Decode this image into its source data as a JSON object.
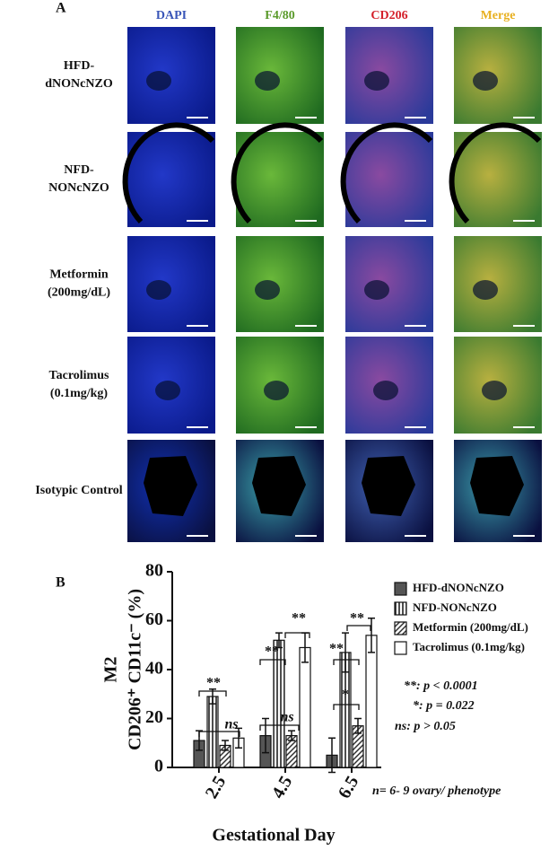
{
  "panel_a": {
    "label": "A",
    "columns": [
      {
        "name": "DAPI",
        "color": "#3a56b8"
      },
      {
        "name": "F4/80",
        "color": "#5a9a2a"
      },
      {
        "name": "CD206",
        "color": "#d4202a"
      },
      {
        "name": "Merge",
        "color": "#e8b020"
      }
    ],
    "rows": [
      [
        "HFD-",
        "dNONcNZO"
      ],
      [
        "NFD-",
        "NONcNZO"
      ],
      [
        "Metformin",
        "(200mg/dL)"
      ],
      [
        "Tacrolimus",
        "(0.1mg/kg)"
      ],
      [
        "Isotypic Control"
      ]
    ]
  },
  "chart_data": {
    "type": "bar",
    "label": "B",
    "y_label": [
      "M2",
      "CD206⁺ CD11c⁻ (%)"
    ],
    "x_label": "Gestational Day",
    "categories": [
      "2.5",
      "4.5",
      "6.5"
    ],
    "series": [
      {
        "name": "HFD-dNONcNZO",
        "color": "#555555",
        "hatch": "none",
        "values": [
          11,
          13,
          5
        ],
        "errors": [
          4,
          7,
          7
        ]
      },
      {
        "name": "NFD-NONcNZO",
        "color": "#ffffff",
        "hatch": "vertical",
        "values": [
          29,
          52,
          47
        ],
        "errors": [
          3,
          3,
          8
        ]
      },
      {
        "name": "Metformin (200mg/dL)",
        "color": "#ffffff",
        "hatch": "diagonal",
        "values": [
          9,
          13,
          17
        ],
        "errors": [
          2,
          2,
          3
        ]
      },
      {
        "name": "Tacrolimus (0.1mg/kg)",
        "color": "#ffffff",
        "hatch": "none",
        "values": [
          12,
          49,
          54
        ],
        "errors": [
          4,
          6,
          7
        ]
      }
    ],
    "ylim": [
      0,
      80
    ],
    "yticks": [
      0,
      20,
      40,
      60,
      80
    ],
    "legend": "right",
    "annotations": [
      "**",
      "ns",
      "**",
      "**",
      "ns",
      "**",
      "**",
      "*"
    ],
    "notes": [
      "**: p < 0.0001",
      "*: p = 0.022",
      "ns: p > 0.05",
      "n= 6- 9 ovary/ phenotype"
    ]
  }
}
